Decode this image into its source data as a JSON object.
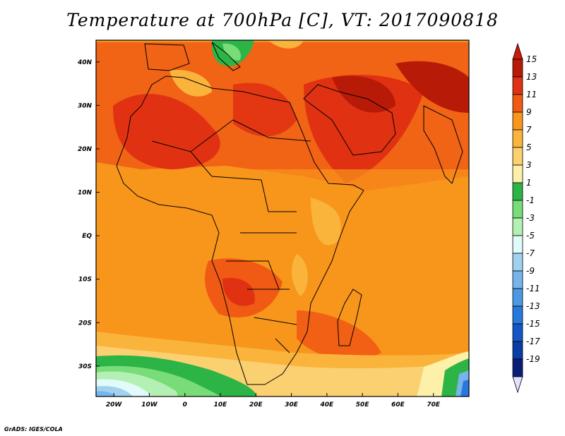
{
  "title": "Temperature at 700hPa [C], VT: 2017090818",
  "credit": "GrADS: IGES/COLA",
  "map": {
    "variable": "Temperature at 700hPa",
    "units": "C",
    "valid_time": "2017090818",
    "lon_range": [
      -25,
      80
    ],
    "lat_range": [
      -37,
      45
    ],
    "lon_ticks": [
      {
        "value": -20,
        "label": "20W"
      },
      {
        "value": -10,
        "label": "10W"
      },
      {
        "value": 0,
        "label": "0"
      },
      {
        "value": 10,
        "label": "10E"
      },
      {
        "value": 20,
        "label": "20E"
      },
      {
        "value": 30,
        "label": "30E"
      },
      {
        "value": 40,
        "label": "40E"
      },
      {
        "value": 50,
        "label": "50E"
      },
      {
        "value": 60,
        "label": "60E"
      },
      {
        "value": 70,
        "label": "70E"
      }
    ],
    "lat_ticks": [
      {
        "value": 40,
        "label": "40N"
      },
      {
        "value": 30,
        "label": "30N"
      },
      {
        "value": 20,
        "label": "20N"
      },
      {
        "value": 10,
        "label": "10N"
      },
      {
        "value": 0,
        "label": "EQ"
      },
      {
        "value": -10,
        "label": "10S"
      },
      {
        "value": -20,
        "label": "20S"
      },
      {
        "value": -30,
        "label": "30S"
      }
    ]
  },
  "colorbar": {
    "labels": [
      "15",
      "13",
      "11",
      "9",
      "7",
      "5",
      "3",
      "1",
      "-1",
      "-3",
      "-5",
      "-7",
      "-9",
      "-11",
      "-13",
      "-15",
      "-17",
      "-19"
    ],
    "colors": [
      "#b81a08",
      "#e03212",
      "#f05a14",
      "#f8961c",
      "#fab43c",
      "#fbd070",
      "#fdf0a8",
      "#2db446",
      "#78dc78",
      "#b4f0b4",
      "#e1fafa",
      "#a0d2f0",
      "#78b4ec",
      "#4c98e4",
      "#2878dc",
      "#1456c8",
      "#0a3ca6",
      "#0a1e78"
    ],
    "top_color": "#cc1a08",
    "bottom_color": "#e0e0ff"
  }
}
